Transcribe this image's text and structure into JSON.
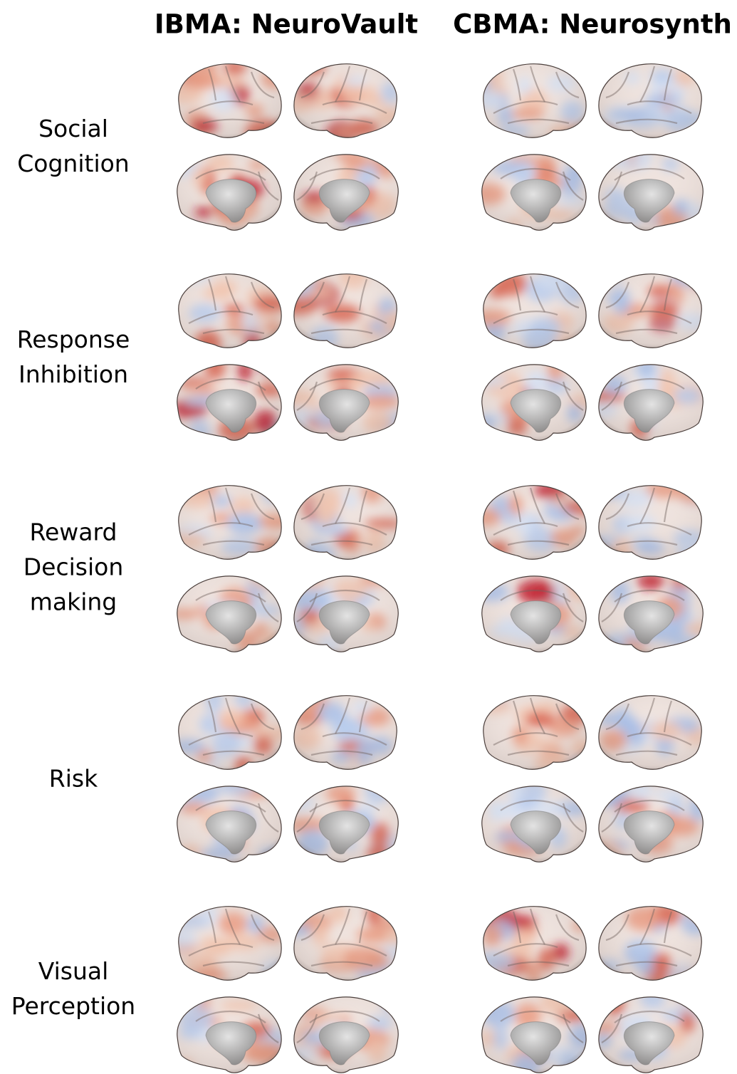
{
  "columns": [
    "IBMA: NeuroVault",
    "CBMA: Neurosynth"
  ],
  "rows": [
    {
      "lines": [
        "Social",
        "Cognition"
      ]
    },
    {
      "lines": [
        "Response",
        "Inhibition"
      ]
    },
    {
      "lines": [
        "Reward",
        "Decision",
        "making"
      ]
    },
    {
      "lines": [
        "Risk"
      ]
    },
    {
      "lines": [
        "Visual",
        "Perception"
      ]
    }
  ]
}
